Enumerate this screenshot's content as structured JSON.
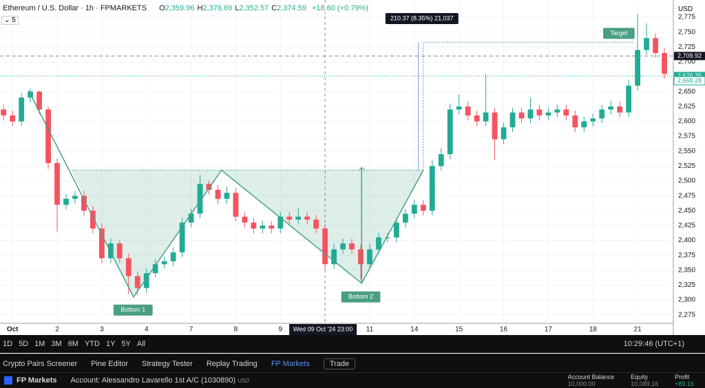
{
  "header": {
    "symbol": "Ethereum / U.S. Dollar · 1h · FPMARKETS",
    "ohlc": [
      {
        "key": "O",
        "value": "2,359.96"
      },
      {
        "key": "H",
        "value": "2,376.69"
      },
      {
        "key": "L",
        "value": "2,352.57"
      },
      {
        "key": "C",
        "value": "2,374.59"
      }
    ],
    "change": "+18.60 (+0.79%)",
    "indicator_count": "5",
    "currency": "USD"
  },
  "chart_data": {
    "type": "candlestick",
    "up_color": "#22ab94",
    "down_color": "#f7525f",
    "grid": true,
    "xlim": [
      -0.4,
      75.0
    ],
    "ylim": [
      2260.7,
      2804
    ],
    "yticks": [
      {
        "value": 2275,
        "label": "2,275"
      },
      {
        "value": 2300,
        "label": "2,300"
      },
      {
        "value": 2325,
        "label": "2,325"
      },
      {
        "value": 2350,
        "label": "2,350"
      },
      {
        "value": 2375,
        "label": "2,375"
      },
      {
        "value": 2400,
        "label": "2,400"
      },
      {
        "value": 2425,
        "label": "2,425"
      },
      {
        "value": 2450,
        "label": "2,450"
      },
      {
        "value": 2475,
        "label": "2,475"
      },
      {
        "value": 2500,
        "label": "2,500"
      },
      {
        "value": 2525,
        "label": "2,525"
      },
      {
        "value": 2550,
        "label": "2,550"
      },
      {
        "value": 2575,
        "label": "2,575"
      },
      {
        "value": 2600,
        "label": "2,600"
      },
      {
        "value": 2625,
        "label": "2,625"
      },
      {
        "value": 2650,
        "label": "2,650"
      },
      {
        "value": 2700,
        "label": "2,700"
      },
      {
        "value": 2725,
        "label": "2,725"
      },
      {
        "value": 2750,
        "label": "2,750"
      },
      {
        "value": 2775,
        "label": "2,775"
      }
    ],
    "xticks": [
      {
        "value": 1,
        "label": "Oct"
      },
      {
        "value": 6,
        "label": "2"
      },
      {
        "value": 11,
        "label": "3"
      },
      {
        "value": 16,
        "label": "4"
      },
      {
        "value": 21,
        "label": "7"
      },
      {
        "value": 26,
        "label": "8"
      },
      {
        "value": 31,
        "label": "9"
      },
      {
        "value": 41,
        "label": "11"
      },
      {
        "value": 46,
        "label": "14"
      },
      {
        "value": 51,
        "label": "15"
      },
      {
        "value": 56,
        "label": "16"
      },
      {
        "value": 61,
        "label": "17"
      },
      {
        "value": 66,
        "label": "18"
      },
      {
        "value": 71,
        "label": "21"
      }
    ],
    "open": [
      2620,
      2610,
      2600,
      2640,
      2650,
      2620,
      2530,
      2460,
      2470,
      2475,
      2450,
      2420,
      2370,
      2395,
      2370,
      2340,
      2320,
      2345,
      2360,
      2365,
      2380,
      2430,
      2445,
      2495,
      2485,
      2470,
      2480,
      2440,
      2430,
      2420,
      2425,
      2420,
      2440,
      2435,
      2440,
      2435,
      2420,
      2360,
      2385,
      2395,
      2385,
      2360,
      2385,
      2405,
      2405,
      2430,
      2445,
      2460,
      2450,
      2525,
      2545,
      2620,
      2625,
      2610,
      2600,
      2615,
      2570,
      2590,
      2615,
      2605,
      2620,
      2610,
      2615,
      2620,
      2610,
      2590,
      2600,
      2605,
      2620,
      2625,
      2615,
      2660,
      2720,
      2740,
      2715
    ],
    "high": [
      2628,
      2618,
      2648,
      2655,
      2652,
      2625,
      2538,
      2478,
      2483,
      2483,
      2458,
      2428,
      2403,
      2400,
      2378,
      2348,
      2353,
      2368,
      2373,
      2388,
      2438,
      2453,
      2510,
      2500,
      2493,
      2490,
      2488,
      2448,
      2438,
      2433,
      2433,
      2448,
      2448,
      2455,
      2448,
      2443,
      2428,
      2395,
      2403,
      2403,
      2393,
      2395,
      2413,
      2413,
      2438,
      2453,
      2468,
      2468,
      2535,
      2555,
      2630,
      2645,
      2633,
      2618,
      2680,
      2623,
      2598,
      2623,
      2623,
      2640,
      2628,
      2623,
      2628,
      2628,
      2618,
      2608,
      2613,
      2628,
      2635,
      2633,
      2670,
      2780,
      2765,
      2748,
      2723
    ],
    "low": [
      2602,
      2592,
      2592,
      2632,
      2612,
      2520,
      2415,
      2452,
      2462,
      2442,
      2412,
      2362,
      2362,
      2362,
      2310,
      2308,
      2312,
      2338,
      2352,
      2357,
      2372,
      2422,
      2437,
      2477,
      2462,
      2462,
      2432,
      2422,
      2412,
      2412,
      2412,
      2412,
      2427,
      2427,
      2427,
      2412,
      2350,
      2352,
      2377,
      2377,
      2335,
      2352,
      2377,
      2397,
      2397,
      2422,
      2437,
      2442,
      2442,
      2517,
      2537,
      2612,
      2602,
      2592,
      2592,
      2535,
      2562,
      2582,
      2597,
      2597,
      2602,
      2602,
      2607,
      2602,
      2582,
      2582,
      2592,
      2597,
      2612,
      2607,
      2607,
      2652,
      2712,
      2707,
      2672
    ],
    "close": [
      2610,
      2600,
      2640,
      2650,
      2620,
      2530,
      2460,
      2470,
      2475,
      2450,
      2420,
      2370,
      2395,
      2370,
      2340,
      2320,
      2345,
      2360,
      2365,
      2380,
      2430,
      2445,
      2495,
      2485,
      2470,
      2480,
      2440,
      2430,
      2420,
      2425,
      2420,
      2440,
      2435,
      2440,
      2435,
      2420,
      2360,
      2385,
      2395,
      2385,
      2360,
      2385,
      2405,
      2405,
      2430,
      2445,
      2460,
      2450,
      2525,
      2545,
      2620,
      2625,
      2610,
      2600,
      2615,
      2570,
      2590,
      2615,
      2605,
      2620,
      2610,
      2615,
      2620,
      2610,
      2590,
      2600,
      2605,
      2620,
      2625,
      2615,
      2660,
      2720,
      2740,
      2715,
      2680
    ],
    "pattern": {
      "color": "#4a9e83",
      "points": [
        {
          "x": 2.8,
          "y": 2652
        },
        {
          "x": 14.55,
          "y": 2305
        },
        {
          "x": 24.4,
          "y": 2518
        },
        {
          "x": 40.1,
          "y": 2328
        },
        {
          "x": 47.0,
          "y": 2518
        }
      ],
      "neckline": {
        "x": [
          7.6,
          47.0
        ],
        "y": 2518
      },
      "target": {
        "x": [
          47.2,
          70.5
        ],
        "y": 2733
      },
      "labels": [
        {
          "text": "Bottom 1",
          "x": 14.5,
          "y": 2283
        },
        {
          "text": "Bottom 2",
          "x": 40.0,
          "y": 2305
        },
        {
          "text": "Target",
          "x": 68.9,
          "y": 2748
        }
      ]
    },
    "measure_label": "210.37 (8.35%) 21,037",
    "crosshair": {
      "x": 36,
      "label": "Wed 09 Oct '24   23:00"
    },
    "price_labels": [
      {
        "value": 2709.92,
        "label": "2,709.92",
        "color": "#131722"
      },
      {
        "value": 2676.25,
        "label": "2,676.25",
        "color": "#22ab94"
      },
      {
        "value": 2668.28,
        "label": "2,668.28",
        "color": "#ffffff"
      }
    ]
  },
  "toolbar": {
    "ranges": [
      "1D",
      "5D",
      "1M",
      "3M",
      "6M",
      "YTD",
      "1Y",
      "5Y",
      "All"
    ],
    "clock": "10:29:46 (UTC+1)"
  },
  "tabs": [
    "Crypto Pairs Screener",
    "Pine Editor",
    "Strategy Tester",
    "Replay Trading",
    "FP Markets",
    "Trade"
  ],
  "account": {
    "broker": "FP Markets",
    "name": "Account: Alessandro Lavarello 1st A/C (1030890)",
    "currency": "USD",
    "stats": [
      {
        "label": "Account Balance",
        "value": "10,000.00"
      },
      {
        "label": "Equity",
        "value": "10,089.16"
      },
      {
        "label": "Profit",
        "value": "+89.16"
      }
    ]
  }
}
